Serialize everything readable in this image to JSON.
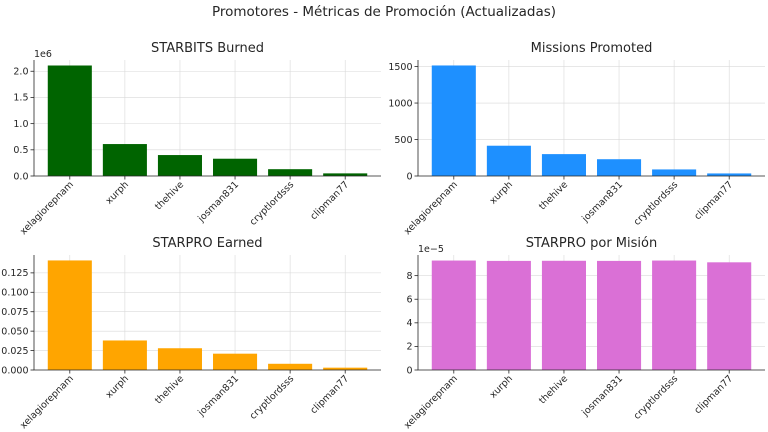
{
  "figure": {
    "title": "Promotores - Métricas de Promoción (Actualizadas)"
  },
  "chart_data": [
    {
      "type": "bar",
      "title": "STARBITS Burned",
      "categories": [
        "xelagiorepnam",
        "xurph",
        "thehive",
        "josman831",
        "cryptlordsss",
        "clipman77"
      ],
      "values": [
        2110000,
        610000,
        400000,
        330000,
        130000,
        50000
      ],
      "ylim": [
        0,
        2215000
      ],
      "yticks": [
        0,
        500000,
        1000000,
        1500000,
        2000000
      ],
      "yticklabels": [
        "0.0",
        "0.5",
        "1.0",
        "1.5",
        "2.0"
      ],
      "offset_label": "1e6",
      "color": "#006400",
      "grid": true
    },
    {
      "type": "bar",
      "title": "Missions Promoted",
      "categories": [
        "xelagiorepnam",
        "xurph",
        "thehive",
        "josman831",
        "cryptlordsss",
        "clipman77"
      ],
      "values": [
        1515,
        415,
        300,
        230,
        90,
        35
      ],
      "ylim": [
        0,
        1590
      ],
      "yticks": [
        0,
        500,
        1000,
        1500
      ],
      "yticklabels": [
        "0",
        "500",
        "1000",
        "1500"
      ],
      "offset_label": "",
      "color": "#1E90FF",
      "grid": true
    },
    {
      "type": "bar",
      "title": "STARPRO Earned",
      "categories": [
        "xelagiorepnam",
        "xurph",
        "thehive",
        "josman831",
        "cryptlordsss",
        "clipman77"
      ],
      "values": [
        0.141,
        0.038,
        0.028,
        0.021,
        0.008,
        0.003
      ],
      "ylim": [
        0,
        0.148
      ],
      "yticks": [
        0,
        0.025,
        0.05,
        0.075,
        0.1,
        0.125
      ],
      "yticklabels": [
        "0.000",
        "0.025",
        "0.050",
        "0.075",
        "0.100",
        "0.125"
      ],
      "offset_label": "",
      "color": "#FFA500",
      "grid": true
    },
    {
      "type": "bar",
      "title": "STARPRO por Misión",
      "categories": [
        "xelagiorepnam",
        "xurph",
        "thehive",
        "josman831",
        "cryptlordsss",
        "clipman77"
      ],
      "values": [
        9.28e-05,
        9.25e-05,
        9.26e-05,
        9.25e-05,
        9.28e-05,
        9.13e-05
      ],
      "ylim": [
        0,
        9.75e-05
      ],
      "yticks": [
        0,
        2e-05,
        4e-05,
        6e-05,
        8e-05
      ],
      "yticklabels": [
        "0",
        "2",
        "4",
        "6",
        "8"
      ],
      "offset_label": "1e−5",
      "color": "#DA70D6",
      "grid": true
    }
  ]
}
